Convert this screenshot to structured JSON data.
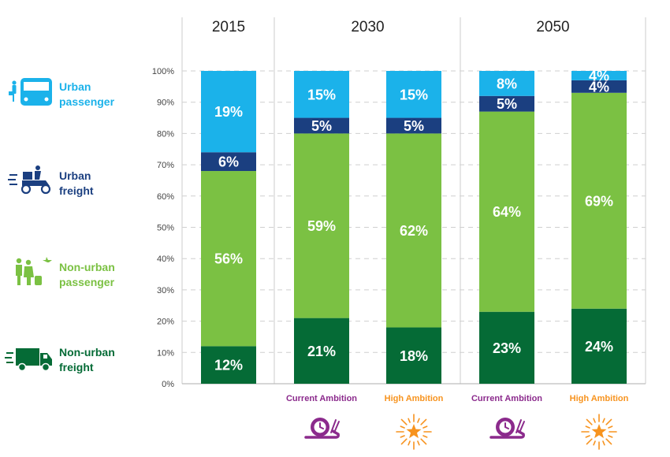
{
  "colors": {
    "urban_passenger": "#1bb2ea",
    "urban_freight": "#1b3f80",
    "nonurban_passenger": "#7bc143",
    "nonurban_freight": "#056b36",
    "current_ambition": "#8b2a8c",
    "high_ambition": "#f7931e"
  },
  "legend": [
    {
      "key": "urban_passenger",
      "line1": "Urban",
      "line2": "passenger",
      "icon": "bus-passenger-icon"
    },
    {
      "key": "urban_freight",
      "line1": "Urban",
      "line2": "freight",
      "icon": "delivery-scooter-icon"
    },
    {
      "key": "nonurban_passenger",
      "line1": "Non-urban",
      "line2": "passenger",
      "icon": "travellers-plane-icon"
    },
    {
      "key": "nonurban_freight",
      "line1": "Non-urban",
      "line2": "freight",
      "icon": "truck-icon"
    }
  ],
  "chart_data": {
    "type": "bar",
    "stacked": true,
    "percent_stacked": true,
    "year_groups": [
      "2015",
      "2030",
      "2050"
    ],
    "categories": [
      "2015",
      "2030 Current Ambition",
      "2030 High Ambition",
      "2050 Current Ambition",
      "2050 High Ambition"
    ],
    "scenario_labels": [
      "",
      "Current Ambition",
      "High Ambition",
      "Current Ambition",
      "High Ambition"
    ],
    "scenario_icons": [
      "",
      "snail-clock-icon",
      "star-burst-icon",
      "snail-clock-icon",
      "star-burst-icon"
    ],
    "series": [
      {
        "key": "nonurban_freight",
        "values": [
          12,
          21,
          18,
          23,
          24
        ],
        "labels": [
          "12%",
          "21%",
          "18%",
          "23%",
          "24%"
        ]
      },
      {
        "key": "nonurban_passenger",
        "values": [
          56,
          59,
          62,
          64,
          69
        ],
        "labels": [
          "56%",
          "59%",
          "62%",
          "64%",
          "69%"
        ]
      },
      {
        "key": "urban_freight",
        "values": [
          6,
          5,
          5,
          5,
          4
        ],
        "labels": [
          "6%",
          "5%",
          "5%",
          "5%",
          "4%"
        ]
      },
      {
        "key": "urban_passenger",
        "values": [
          19,
          15,
          15,
          8,
          4
        ],
        "labels": [
          "19%",
          "15%",
          "15%",
          "8%",
          "4%"
        ]
      }
    ],
    "yticks": [
      "0%",
      "10%",
      "20%",
      "30%",
      "40%",
      "50%",
      "60%",
      "70%",
      "80%",
      "90%",
      "100%"
    ],
    "ylim": [
      0,
      100
    ],
    "grid": true
  }
}
